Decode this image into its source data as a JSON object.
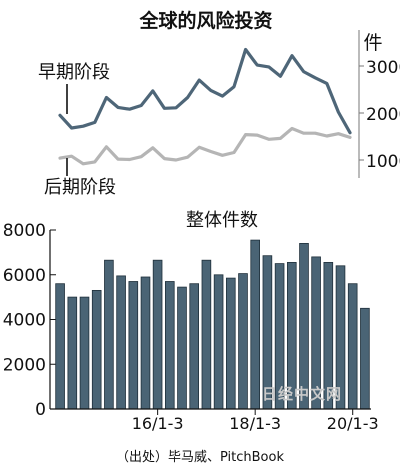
{
  "title": "全球的风险投资",
  "source": "（出处）毕马威、PitchBook",
  "watermark": "日经中文网",
  "colors": {
    "dark_line": "#4e6678",
    "light_line": "#b5b5b5",
    "bar_fill": "#4a6475",
    "bar_stroke": "#1f2f3a",
    "text": "#111111"
  },
  "chart_data": [
    {
      "type": "line",
      "unit": "件",
      "ylim": [
        500,
        3500
      ],
      "yticks": [
        1000,
        2000,
        3000
      ],
      "series": [
        {
          "name": "早期阶段",
          "values": [
            1950,
            1680,
            1720,
            1800,
            2330,
            2120,
            2080,
            2160,
            2470,
            2100,
            2110,
            2330,
            2700,
            2480,
            2360,
            2560,
            3350,
            3020,
            2980,
            2780,
            3220,
            2880,
            2750,
            2630,
            2020,
            1580
          ]
        },
        {
          "name": "后期阶段",
          "values": [
            1040,
            1080,
            920,
            960,
            1280,
            1020,
            1010,
            1070,
            1260,
            1030,
            1000,
            1060,
            1270,
            1180,
            1100,
            1160,
            1540,
            1530,
            1440,
            1460,
            1670,
            1570,
            1570,
            1510,
            1560,
            1480
          ]
        }
      ]
    },
    {
      "type": "bar",
      "title": "整体件数",
      "ylim": [
        0,
        8000
      ],
      "yticks": [
        0,
        2000,
        4000,
        6000,
        8000
      ],
      "xtick_labels": [
        {
          "label": "16/1-3",
          "index": 8
        },
        {
          "label": "18/1-3",
          "index": 16
        },
        {
          "label": "20/1-3",
          "index": 24
        }
      ],
      "values": [
        5600,
        5000,
        5000,
        5300,
        6650,
        5950,
        5700,
        5900,
        6650,
        5700,
        5450,
        5600,
        6650,
        6000,
        5850,
        6050,
        7550,
        6850,
        6500,
        6550,
        7400,
        6800,
        6550,
        6400,
        5600,
        4500
      ]
    }
  ]
}
